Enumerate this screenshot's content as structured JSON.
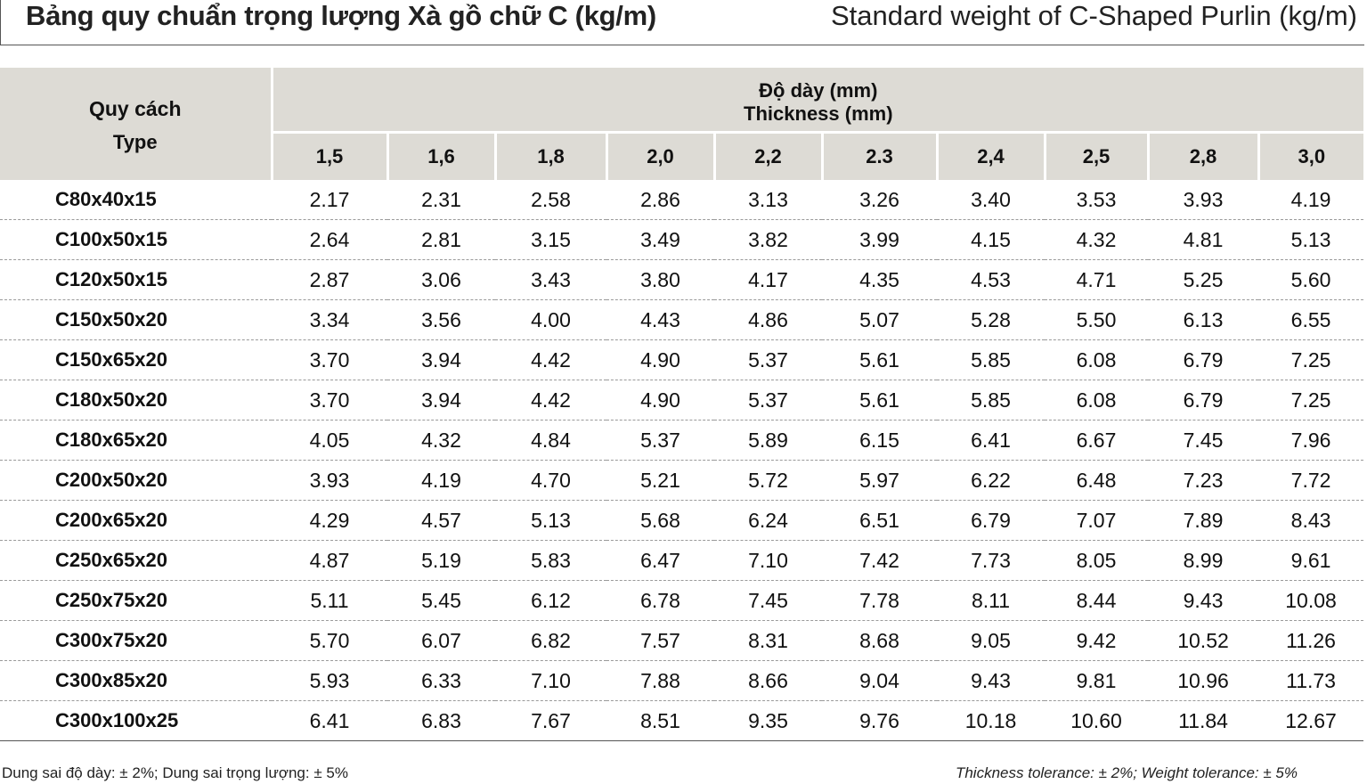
{
  "title_vi": "Bảng quy chuẩn trọng lượng Xà gồ chữ C (kg/m)",
  "title_en": "Standard weight of C-Shaped Purlin (kg/m)",
  "header": {
    "type_vi": "Quy cách",
    "type_en": "Type",
    "group_vi": "Độ dày (mm)",
    "group_en": "Thickness (mm)",
    "thicknesses": [
      "1,5",
      "1,6",
      "1,8",
      "2,0",
      "2,2",
      "2.3",
      "2,4",
      "2,5",
      "2,8",
      "3,0"
    ]
  },
  "rows": [
    {
      "type": "C80x40x15",
      "values": [
        "2.17",
        "2.31",
        "2.58",
        "2.86",
        "3.13",
        "3.26",
        "3.40",
        "3.53",
        "3.93",
        "4.19"
      ]
    },
    {
      "type": "C100x50x15",
      "values": [
        "2.64",
        "2.81",
        "3.15",
        "3.49",
        "3.82",
        "3.99",
        "4.15",
        "4.32",
        "4.81",
        "5.13"
      ]
    },
    {
      "type": "C120x50x15",
      "values": [
        "2.87",
        "3.06",
        "3.43",
        "3.80",
        "4.17",
        "4.35",
        "4.53",
        "4.71",
        "5.25",
        "5.60"
      ]
    },
    {
      "type": "C150x50x20",
      "values": [
        "3.34",
        "3.56",
        "4.00",
        "4.43",
        "4.86",
        "5.07",
        "5.28",
        "5.50",
        "6.13",
        "6.55"
      ]
    },
    {
      "type": "C150x65x20",
      "values": [
        "3.70",
        "3.94",
        "4.42",
        "4.90",
        "5.37",
        "5.61",
        "5.85",
        "6.08",
        "6.79",
        "7.25"
      ]
    },
    {
      "type": "C180x50x20",
      "values": [
        "3.70",
        "3.94",
        "4.42",
        "4.90",
        "5.37",
        "5.61",
        "5.85",
        "6.08",
        "6.79",
        "7.25"
      ]
    },
    {
      "type": "C180x65x20",
      "values": [
        "4.05",
        "4.32",
        "4.84",
        "5.37",
        "5.89",
        "6.15",
        "6.41",
        "6.67",
        "7.45",
        "7.96"
      ]
    },
    {
      "type": "C200x50x20",
      "values": [
        "3.93",
        "4.19",
        "4.70",
        "5.21",
        "5.72",
        "5.97",
        "6.22",
        "6.48",
        "7.23",
        "7.72"
      ]
    },
    {
      "type": "C200x65x20",
      "values": [
        "4.29",
        "4.57",
        "5.13",
        "5.68",
        "6.24",
        "6.51",
        "6.79",
        "7.07",
        "7.89",
        "8.43"
      ]
    },
    {
      "type": "C250x65x20",
      "values": [
        "4.87",
        "5.19",
        "5.83",
        "6.47",
        "7.10",
        "7.42",
        "7.73",
        "8.05",
        "8.99",
        "9.61"
      ]
    },
    {
      "type": "C250x75x20",
      "values": [
        "5.11",
        "5.45",
        "6.12",
        "6.78",
        "7.45",
        "7.78",
        "8.11",
        "8.44",
        "9.43",
        "10.08"
      ]
    },
    {
      "type": "C300x75x20",
      "values": [
        "5.70",
        "6.07",
        "6.82",
        "7.57",
        "8.31",
        "8.68",
        "9.05",
        "9.42",
        "10.52",
        "11.26"
      ]
    },
    {
      "type": "C300x85x20",
      "values": [
        "5.93",
        "6.33",
        "7.10",
        "7.88",
        "8.66",
        "9.04",
        "9.43",
        "9.81",
        "10.96",
        "11.73"
      ]
    },
    {
      "type": "C300x100x25",
      "values": [
        "6.41",
        "6.83",
        "7.67",
        "8.51",
        "9.35",
        "9.76",
        "10.18",
        "10.60",
        "11.84",
        "12.67"
      ]
    }
  ],
  "footer_vi": "Dung sai độ dày: ± 2%;   Dung sai trọng lượng: ± 5%",
  "footer_en": "Thickness tolerance: ± 2%;     Weight tolerance: ± 5%",
  "colors": {
    "header_bg": "#dddbd5",
    "row_divider": "#9a9a9a"
  }
}
